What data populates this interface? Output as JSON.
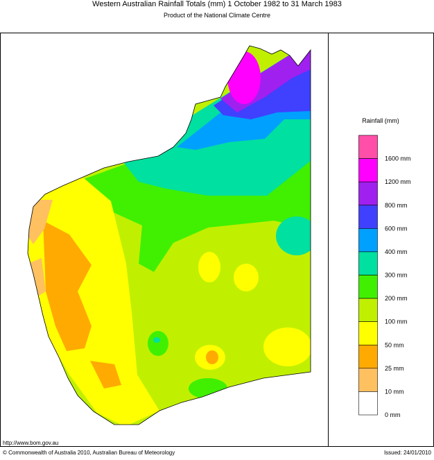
{
  "header": {
    "title": "Western Australian Rainfall Totals (mm) 1 October 1982 to 31 March 1983",
    "subtitle": "Product of the National Climate Centre"
  },
  "legend": {
    "title": "Rainfall (mm)",
    "items": [
      {
        "color": "#ff4fa8",
        "label": "1600 mm"
      },
      {
        "color": "#ff00ff",
        "label": "1200 mm"
      },
      {
        "color": "#a020f0",
        "label": "800 mm"
      },
      {
        "color": "#4040ff",
        "label": "600 mm"
      },
      {
        "color": "#00a0ff",
        "label": "400 mm"
      },
      {
        "color": "#00e0a0",
        "label": "300 mm"
      },
      {
        "color": "#40f000",
        "label": "200 mm"
      },
      {
        "color": "#c0f000",
        "label": "100 mm"
      },
      {
        "color": "#ffff00",
        "label": "50 mm"
      },
      {
        "color": "#ffaa00",
        "label": "25 mm"
      },
      {
        "color": "#ffc060",
        "label": "10 mm"
      },
      {
        "color": "#ffffff",
        "label": "0 mm"
      }
    ]
  },
  "footer": {
    "url": "http://www.bom.gov.au",
    "copyright": "© Commonwealth of Australia 2010, Australian Bureau of Meteorology",
    "issued": "Issued: 24/01/2010"
  }
}
